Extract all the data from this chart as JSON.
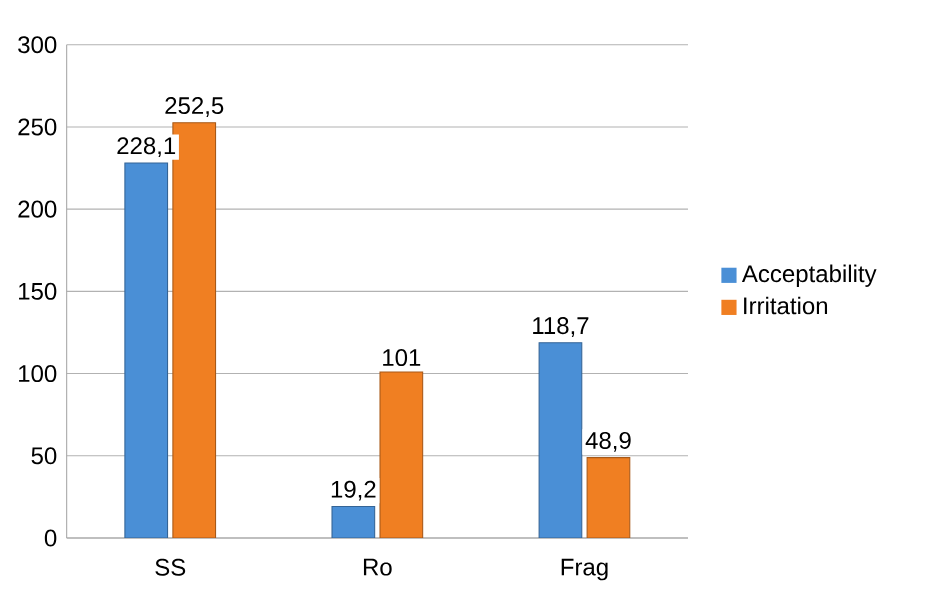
{
  "chart_data": {
    "type": "bar",
    "categories": [
      "SS",
      "Ro",
      "Frag"
    ],
    "series": [
      {
        "name": "Acceptability",
        "color": "#4a8fd6",
        "values": [
          228.1,
          19.2,
          118.7
        ],
        "value_labels": [
          "228,1",
          "19,2",
          "118,7"
        ]
      },
      {
        "name": "Irritation",
        "color": "#f07f22",
        "values": [
          252.5,
          101,
          48.9
        ],
        "value_labels": [
          "252,5",
          "101",
          "48,9"
        ]
      }
    ],
    "ylim": [
      0,
      300
    ],
    "yticks": [
      0,
      50,
      100,
      150,
      200,
      250,
      300
    ],
    "grid": "y",
    "legend": "right"
  }
}
